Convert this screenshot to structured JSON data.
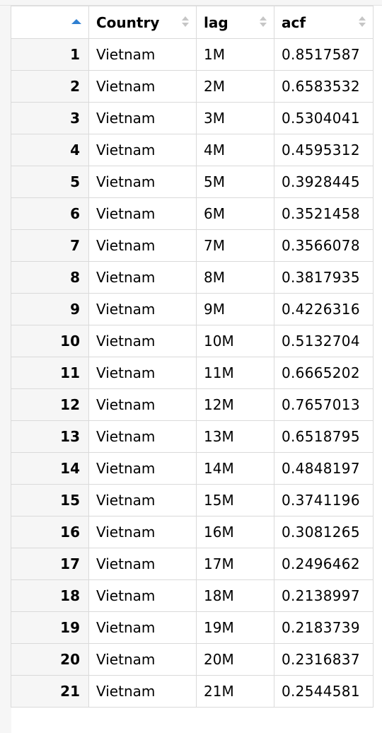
{
  "table": {
    "columns": [
      {
        "label": "Country",
        "sort": "none"
      },
      {
        "label": "lag",
        "sort": "none"
      },
      {
        "label": "acf",
        "sort": "none"
      }
    ],
    "index_sort": "ascending",
    "rows": [
      {
        "idx": "1",
        "country": "Vietnam",
        "lag": "1M",
        "acf": "0.8517587"
      },
      {
        "idx": "2",
        "country": "Vietnam",
        "lag": "2M",
        "acf": "0.6583532"
      },
      {
        "idx": "3",
        "country": "Vietnam",
        "lag": "3M",
        "acf": "0.5304041"
      },
      {
        "idx": "4",
        "country": "Vietnam",
        "lag": "4M",
        "acf": "0.4595312"
      },
      {
        "idx": "5",
        "country": "Vietnam",
        "lag": "5M",
        "acf": "0.3928445"
      },
      {
        "idx": "6",
        "country": "Vietnam",
        "lag": "6M",
        "acf": "0.3521458"
      },
      {
        "idx": "7",
        "country": "Vietnam",
        "lag": "7M",
        "acf": "0.3566078"
      },
      {
        "idx": "8",
        "country": "Vietnam",
        "lag": "8M",
        "acf": "0.3817935"
      },
      {
        "idx": "9",
        "country": "Vietnam",
        "lag": "9M",
        "acf": "0.4226316"
      },
      {
        "idx": "10",
        "country": "Vietnam",
        "lag": "10M",
        "acf": "0.5132704"
      },
      {
        "idx": "11",
        "country": "Vietnam",
        "lag": "11M",
        "acf": "0.6665202"
      },
      {
        "idx": "12",
        "country": "Vietnam",
        "lag": "12M",
        "acf": "0.7657013"
      },
      {
        "idx": "13",
        "country": "Vietnam",
        "lag": "13M",
        "acf": "0.6518795"
      },
      {
        "idx": "14",
        "country": "Vietnam",
        "lag": "14M",
        "acf": "0.4848197"
      },
      {
        "idx": "15",
        "country": "Vietnam",
        "lag": "15M",
        "acf": "0.3741196"
      },
      {
        "idx": "16",
        "country": "Vietnam",
        "lag": "16M",
        "acf": "0.3081265"
      },
      {
        "idx": "17",
        "country": "Vietnam",
        "lag": "17M",
        "acf": "0.2496462"
      },
      {
        "idx": "18",
        "country": "Vietnam",
        "lag": "18M",
        "acf": "0.2138997"
      },
      {
        "idx": "19",
        "country": "Vietnam",
        "lag": "19M",
        "acf": "0.2183739"
      },
      {
        "idx": "20",
        "country": "Vietnam",
        "lag": "20M",
        "acf": "0.2316837"
      },
      {
        "idx": "21",
        "country": "Vietnam",
        "lag": "21M",
        "acf": "0.2544581"
      }
    ]
  },
  "colors": {
    "sort_active": "#2f7fd1",
    "sort_inactive": "#c6c6c6",
    "grid_line": "#dadada",
    "index_bg": "#f6f6f6"
  },
  "icons": {
    "index_sort": "sort-ascending-icon",
    "column_sort": "sort-both-icon"
  }
}
